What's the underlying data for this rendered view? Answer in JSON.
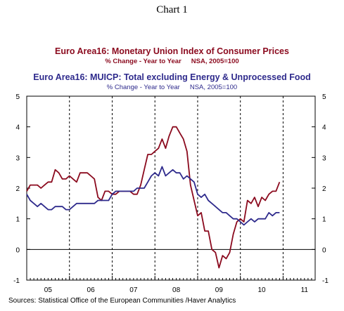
{
  "header": {
    "chart_label": "Chart 1"
  },
  "footer": {
    "source": "Sources:  Statistical Office of the European Communities /Haver Analytics"
  },
  "colors": {
    "series1": "#8b0a1e",
    "series2": "#2e2a8c",
    "axis": "#000000"
  },
  "chart_data": {
    "type": "line",
    "titles": [
      {
        "title": "Euro Area16: Monetary Union Index of Consumer Prices",
        "subtitle_left": "% Change - Year to Year",
        "subtitle_right": "NSA, 2005=100",
        "color": "#8b0a1e"
      },
      {
        "title": "Euro Area16: MUICP: Total excluding Energy & Unprocessed Food",
        "subtitle_left": "% Change - Year to Year",
        "subtitle_right": "NSA, 2005=100",
        "color": "#2e2a8c"
      }
    ],
    "xlim": [
      2005.0,
      2011.75
    ],
    "ylim": [
      -1,
      5
    ],
    "y_ticks": [
      -1,
      0,
      1,
      2,
      3,
      4,
      5
    ],
    "x_tick_labels": [
      "05",
      "06",
      "07",
      "08",
      "09",
      "10",
      "11"
    ],
    "x_tick_positions": [
      2005.5,
      2006.5,
      2007.5,
      2008.5,
      2009.5,
      2010.5,
      2011.5
    ],
    "vertical_gridlines": [
      2006.0,
      2007.0,
      2008.0,
      2009.0,
      2010.0,
      2011.0
    ],
    "zero_line": true,
    "series": [
      {
        "x": [
          2005.0,
          2005.083,
          2005.167,
          2005.25,
          2005.333,
          2005.417,
          2005.5,
          2005.583,
          2005.667,
          2005.75,
          2005.833,
          2005.917,
          2006.0,
          2006.083,
          2006.167,
          2006.25,
          2006.333,
          2006.417,
          2006.5,
          2006.583,
          2006.667,
          2006.75,
          2006.833,
          2006.917,
          2007.0,
          2007.083,
          2007.167,
          2007.25,
          2007.333,
          2007.417,
          2007.5,
          2007.583,
          2007.667,
          2007.75,
          2007.833,
          2007.917,
          2008.0,
          2008.083,
          2008.167,
          2008.25,
          2008.333,
          2008.417,
          2008.5,
          2008.583,
          2008.667,
          2008.75,
          2008.833,
          2008.917,
          2009.0,
          2009.083,
          2009.167,
          2009.25,
          2009.333,
          2009.417,
          2009.5,
          2009.583,
          2009.667,
          2009.75,
          2009.833,
          2009.917,
          2010.0,
          2010.083,
          2010.167,
          2010.25,
          2010.333,
          2010.417,
          2010.5,
          2010.583,
          2010.667,
          2010.75,
          2010.833,
          2010.917
        ],
        "values": [
          1.9,
          2.1,
          2.1,
          2.1,
          2.0,
          2.1,
          2.2,
          2.2,
          2.6,
          2.5,
          2.3,
          2.3,
          2.4,
          2.3,
          2.2,
          2.5,
          2.5,
          2.5,
          2.4,
          2.3,
          1.7,
          1.6,
          1.9,
          1.9,
          1.8,
          1.8,
          1.9,
          1.9,
          1.9,
          1.9,
          1.8,
          1.8,
          2.1,
          2.6,
          3.1,
          3.1,
          3.2,
          3.3,
          3.6,
          3.3,
          3.7,
          4.0,
          4.0,
          3.8,
          3.6,
          3.2,
          2.1,
          1.6,
          1.1,
          1.2,
          0.6,
          0.6,
          0.0,
          -0.1,
          -0.6,
          -0.2,
          -0.3,
          -0.1,
          0.5,
          0.9,
          1.0,
          0.9,
          1.6,
          1.5,
          1.7,
          1.4,
          1.7,
          1.6,
          1.8,
          1.9,
          1.9,
          2.2
        ]
      },
      {
        "x": [
          2005.0,
          2005.083,
          2005.167,
          2005.25,
          2005.333,
          2005.417,
          2005.5,
          2005.583,
          2005.667,
          2005.75,
          2005.833,
          2005.917,
          2006.0,
          2006.083,
          2006.167,
          2006.25,
          2006.333,
          2006.417,
          2006.5,
          2006.583,
          2006.667,
          2006.75,
          2006.833,
          2006.917,
          2007.0,
          2007.083,
          2007.167,
          2007.25,
          2007.333,
          2007.417,
          2007.5,
          2007.583,
          2007.667,
          2007.75,
          2007.833,
          2007.917,
          2008.0,
          2008.083,
          2008.167,
          2008.25,
          2008.333,
          2008.417,
          2008.5,
          2008.583,
          2008.667,
          2008.75,
          2008.833,
          2008.917,
          2009.0,
          2009.083,
          2009.167,
          2009.25,
          2009.333,
          2009.417,
          2009.5,
          2009.583,
          2009.667,
          2009.75,
          2009.833,
          2009.917,
          2010.0,
          2010.083,
          2010.167,
          2010.25,
          2010.333,
          2010.417,
          2010.5,
          2010.583,
          2010.667,
          2010.75,
          2010.833,
          2010.917
        ],
        "values": [
          1.8,
          1.6,
          1.5,
          1.4,
          1.5,
          1.4,
          1.3,
          1.3,
          1.4,
          1.4,
          1.4,
          1.3,
          1.3,
          1.4,
          1.5,
          1.5,
          1.5,
          1.5,
          1.5,
          1.5,
          1.6,
          1.6,
          1.6,
          1.6,
          1.8,
          1.9,
          1.9,
          1.9,
          1.9,
          1.9,
          1.9,
          2.0,
          2.0,
          2.0,
          2.2,
          2.4,
          2.5,
          2.4,
          2.7,
          2.4,
          2.5,
          2.6,
          2.5,
          2.5,
          2.3,
          2.4,
          2.3,
          2.2,
          1.8,
          1.7,
          1.8,
          1.6,
          1.5,
          1.4,
          1.3,
          1.2,
          1.2,
          1.1,
          1.0,
          1.0,
          0.9,
          0.8,
          0.9,
          1.0,
          0.9,
          1.0,
          1.0,
          1.0,
          1.2,
          1.1,
          1.2,
          1.2
        ]
      }
    ]
  }
}
